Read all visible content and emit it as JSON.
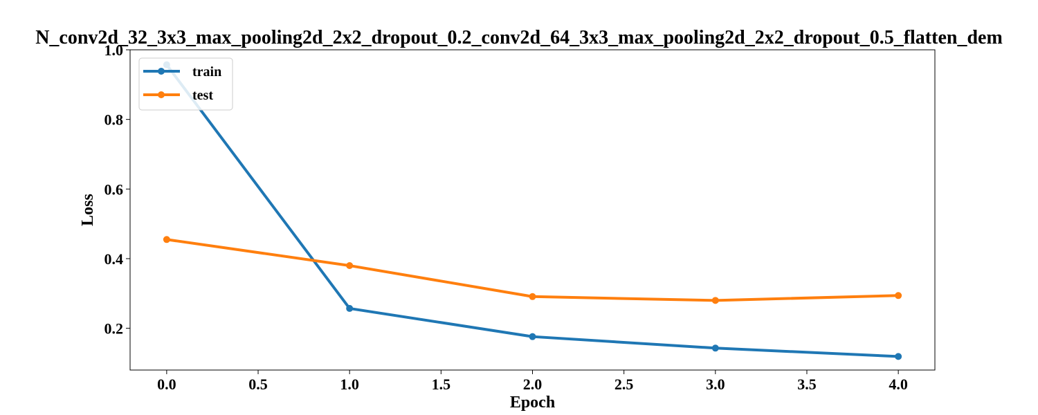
{
  "chart_data": {
    "type": "line",
    "title": "N_conv2d_32_3x3_max_pooling2d_2x2_dropout_0.2_conv2d_64_3x3_max_pooling2d_2x2_dropout_0.5_flatten_dem",
    "xlabel": "Epoch",
    "ylabel": "Loss",
    "x": [
      0,
      1,
      2,
      3,
      4
    ],
    "series": [
      {
        "name": "train",
        "color": "#1f77b4",
        "values": [
          0.957,
          0.257,
          0.176,
          0.143,
          0.119
        ]
      },
      {
        "name": "test",
        "color": "#ff7f0e",
        "values": [
          0.455,
          0.38,
          0.291,
          0.28,
          0.294
        ]
      }
    ],
    "xlim": [
      -0.2,
      4.2
    ],
    "ylim": [
      0.08,
      1.0
    ],
    "xticks": [
      "0.0",
      "0.5",
      "1.0",
      "1.5",
      "2.0",
      "2.5",
      "3.0",
      "3.5",
      "4.0"
    ],
    "yticks": [
      "0.2",
      "0.4",
      "0.6",
      "0.8",
      "1.0"
    ],
    "legend": "top-left",
    "grid": false
  }
}
